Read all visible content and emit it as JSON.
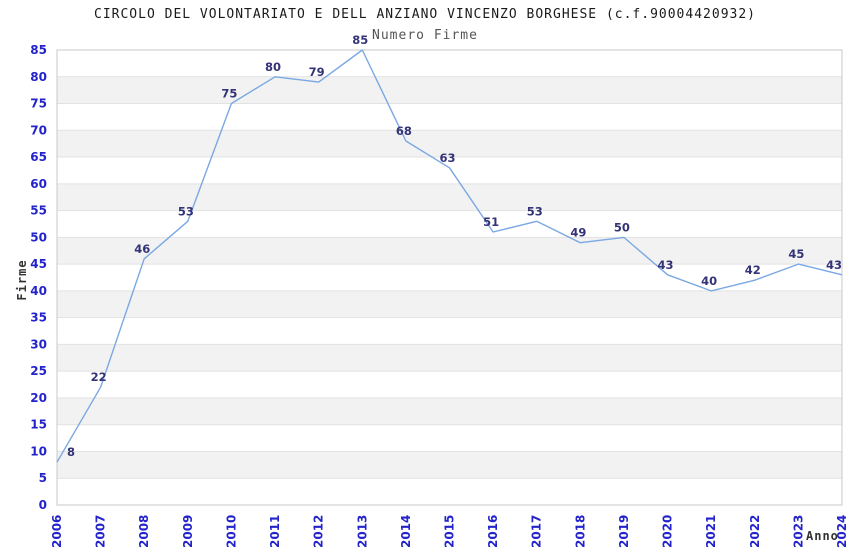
{
  "header": {
    "title": "CIRCOLO DEL VOLONTARIATO E DELL ANZIANO VINCENZO BORGHESE (c.f.90004420932)",
    "subtitle": "Numero Firme"
  },
  "chart_data": {
    "type": "line",
    "title": "Numero Firme",
    "xlabel": "Anno",
    "ylabel": "Firme",
    "categories": [
      "2006",
      "2007",
      "2008",
      "2009",
      "2010",
      "2011",
      "2012",
      "2013",
      "2014",
      "2015",
      "2016",
      "2017",
      "2018",
      "2019",
      "2020",
      "2021",
      "2022",
      "2023",
      "2024"
    ],
    "values": [
      8,
      22,
      46,
      53,
      75,
      80,
      79,
      85,
      68,
      63,
      51,
      53,
      49,
      50,
      43,
      40,
      42,
      45,
      43
    ],
    "ylim": [
      0,
      85
    ],
    "ytick_step": 5,
    "grid": true,
    "band_fill": true,
    "legend_position": "none",
    "colors": {
      "line": "#7aa8e2",
      "tick_label": "#2323cc",
      "point_label": "#333377",
      "band": "#f2f2f2",
      "gridline": "#e2e2e2",
      "border": "#c8c8c8",
      "title": "#1a1a1a",
      "subtitle": "#555555",
      "axis_title": "#333333"
    }
  }
}
